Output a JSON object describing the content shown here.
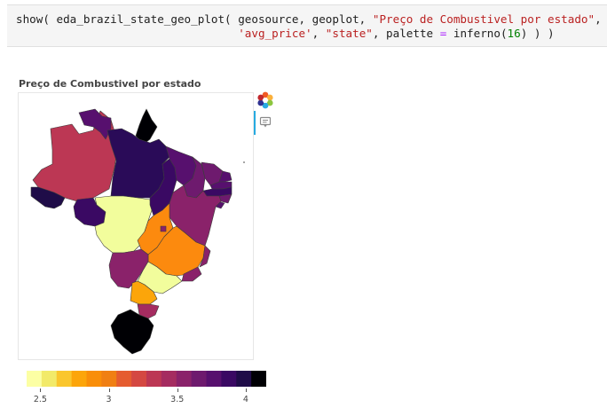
{
  "code_cell": {
    "line1": {
      "prefix": "show( eda_brazil_state_geo_plot( geosource, geoplot, ",
      "title_str": "\"Preço de Combustivel por estado\"",
      "suffix": ","
    },
    "line2": {
      "indent": "                                 ",
      "col_str": "'avg_price'",
      "sep1": ", ",
      "state_str": "\"state\"",
      "mid": ", palette ",
      "eq": "=",
      "func": " inferno(",
      "num": "16",
      "end": ") ) )"
    }
  },
  "plot": {
    "title": "Preço de Combustivel por estado"
  },
  "toolbar": {
    "logo_icon": "bokeh-logo-icon",
    "hover_icon": "hover-tool-icon"
  },
  "colorbar": {
    "palette": [
      "#fcffa4",
      "#f2ea69",
      "#fac62d",
      "#fca50a",
      "#f98e09",
      "#f07f13",
      "#e55c30",
      "#d44842",
      "#bc3754",
      "#a52c60",
      "#8a226a",
      "#6e1a6e",
      "#57106e",
      "#3a0963",
      "#1f0c48",
      "#000004"
    ],
    "ticks": [
      {
        "value": 2.5,
        "label": "2.5"
      },
      {
        "value": 3,
        "label": "3"
      },
      {
        "value": 3.5,
        "label": "3.5"
      },
      {
        "value": 4,
        "label": "4"
      }
    ],
    "range": [
      2.4,
      4.15
    ]
  },
  "map": {
    "states": [
      {
        "id": "AC",
        "color": "#1f0c48"
      },
      {
        "id": "AM",
        "color": "#bc3754"
      },
      {
        "id": "RR",
        "color": "#57106e"
      },
      {
        "id": "AP",
        "color": "#000004"
      },
      {
        "id": "PA",
        "color": "#2a0b58"
      },
      {
        "id": "RO",
        "color": "#3a0963"
      },
      {
        "id": "MT",
        "color": "#f2fd9c"
      },
      {
        "id": "TO",
        "color": "#3a0963"
      },
      {
        "id": "MA",
        "color": "#57106e"
      },
      {
        "id": "PI",
        "color": "#6e1a6e"
      },
      {
        "id": "CE",
        "color": "#6e1a6e"
      },
      {
        "id": "RN",
        "color": "#57106e"
      },
      {
        "id": "PB",
        "color": "#57106e"
      },
      {
        "id": "PE",
        "color": "#3a0963"
      },
      {
        "id": "AL",
        "color": "#6e1a6e"
      },
      {
        "id": "SE",
        "color": "#57106e"
      },
      {
        "id": "BA",
        "color": "#8a226a"
      },
      {
        "id": "GO",
        "color": "#fc8a0e"
      },
      {
        "id": "DF",
        "color": "#8a226a"
      },
      {
        "id": "MG",
        "color": "#fc8a0e"
      },
      {
        "id": "ES",
        "color": "#8a226a"
      },
      {
        "id": "RJ",
        "color": "#8a226a"
      },
      {
        "id": "MS",
        "color": "#8a226a"
      },
      {
        "id": "SP",
        "color": "#f2fd9c"
      },
      {
        "id": "PR",
        "color": "#fca50a"
      },
      {
        "id": "SC",
        "color": "#a52c60"
      },
      {
        "id": "RS",
        "color": "#000004"
      }
    ]
  }
}
